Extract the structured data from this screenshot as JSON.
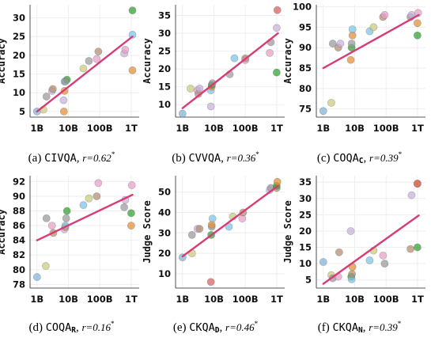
{
  "colors": {
    "trend": "#d63c78",
    "grid": "#eeeeee",
    "axis": "#222222",
    "points": [
      "#2ca02c",
      "#7dc2e6",
      "#e38d33",
      "#c6aeda",
      "#999999",
      "#9b9b9b",
      "#b38c70",
      "#e89ec8",
      "#cbcb7a",
      "#7fb3d5"
    ]
  },
  "chart_data": [
    {
      "type": "scatter",
      "panel": "a",
      "caption": {
        "letter": "(a)",
        "name": "CIVQA",
        "sub": "",
        "r": "r=0.62",
        "star": "*"
      },
      "xlabel": "",
      "ylabel": "Accuracy",
      "xscale": "log",
      "xticks": [
        "1B",
        "10B",
        "100B",
        "1T"
      ],
      "xtick_values": [
        1,
        10,
        100,
        1000
      ],
      "yticks": [
        5,
        10,
        15,
        20,
        25,
        30
      ],
      "xlim": [
        0.6,
        1800
      ],
      "ylim": [
        3.5,
        33.5
      ],
      "points": [
        {
          "x": 1,
          "y": 5,
          "color": "#7fb3d5"
        },
        {
          "x": 1.6,
          "y": 5.5,
          "color": "#cbcb7a"
        },
        {
          "x": 2,
          "y": 9,
          "color": "#999999"
        },
        {
          "x": 3,
          "y": 10.5,
          "color": "#c6aeda"
        },
        {
          "x": 3.2,
          "y": 11,
          "color": "#b38c70"
        },
        {
          "x": 7,
          "y": 8,
          "color": "#c6aeda"
        },
        {
          "x": 7.2,
          "y": 5,
          "color": "#e38d33"
        },
        {
          "x": 7.5,
          "y": 10.5,
          "color": "#e38d33"
        },
        {
          "x": 7.5,
          "y": 13,
          "color": "#7dc2e6"
        },
        {
          "x": 9,
          "y": 13.5,
          "color": "#2ca02c"
        },
        {
          "x": 8,
          "y": 13,
          "color": "#999999"
        },
        {
          "x": 30,
          "y": 16.5,
          "color": "#cbcb7a"
        },
        {
          "x": 45,
          "y": 18.5,
          "color": "#9b9b9b"
        },
        {
          "x": 80,
          "y": 19,
          "color": "#e89ec8"
        },
        {
          "x": 90,
          "y": 21,
          "color": "#b38c70"
        },
        {
          "x": 600,
          "y": 20.5,
          "color": "#c6aeda"
        },
        {
          "x": 650,
          "y": 21.5,
          "color": "#e89ec8"
        },
        {
          "x": 1100,
          "y": 16,
          "color": "#e38d33"
        },
        {
          "x": 1100,
          "y": 25.5,
          "color": "#7dc2e6"
        },
        {
          "x": 1100,
          "y": 32,
          "color": "#2ca02c"
        }
      ],
      "trend": {
        "x": [
          1,
          1100
        ],
        "y": [
          5,
          25
        ]
      }
    },
    {
      "type": "scatter",
      "panel": "b",
      "caption": {
        "letter": "(b)",
        "name": "CVVQA",
        "sub": "",
        "r": "r=0.36",
        "star": "*"
      },
      "xlabel": "",
      "ylabel": "Accuracy",
      "xscale": "log",
      "xticks": [
        "1B",
        "10B",
        "100B",
        "1T"
      ],
      "xtick_values": [
        1,
        10,
        100,
        1000
      ],
      "yticks": [
        10,
        15,
        20,
        25,
        30,
        35
      ],
      "xlim": [
        0.6,
        1800
      ],
      "ylim": [
        6.5,
        38
      ],
      "points": [
        {
          "x": 1,
          "y": 7.5,
          "color": "#7fb3d5"
        },
        {
          "x": 1.8,
          "y": 14.5,
          "color": "#cbcb7a"
        },
        {
          "x": 3,
          "y": 14,
          "color": "#e89ec8"
        },
        {
          "x": 3.2,
          "y": 13,
          "color": "#b38c70"
        },
        {
          "x": 3.5,
          "y": 14.5,
          "color": "#c6aeda"
        },
        {
          "x": 8,
          "y": 9.5,
          "color": "#c6aeda"
        },
        {
          "x": 8,
          "y": 14,
          "color": "#7dc2e6"
        },
        {
          "x": 8.5,
          "y": 15,
          "color": "#e38d33"
        },
        {
          "x": 8.5,
          "y": 15.5,
          "color": "#2ca02c"
        },
        {
          "x": 9,
          "y": 16,
          "color": "#999999"
        },
        {
          "x": 32,
          "y": 18.5,
          "color": "#9b9b9b"
        },
        {
          "x": 45,
          "y": 23,
          "color": "#7dc2e6"
        },
        {
          "x": 100,
          "y": 22.5,
          "color": "#e89ec8"
        },
        {
          "x": 100,
          "y": 23,
          "color": "#b38c70"
        },
        {
          "x": 600,
          "y": 24.5,
          "color": "#e89ec8"
        },
        {
          "x": 650,
          "y": 27.5,
          "color": "#999999"
        },
        {
          "x": 1000,
          "y": 19,
          "color": "#2ca02c"
        },
        {
          "x": 1000,
          "y": 31.5,
          "color": "#c6aeda"
        },
        {
          "x": 1050,
          "y": 36.5,
          "color": "#d65f5f"
        }
      ],
      "trend": {
        "x": [
          1,
          1100
        ],
        "y": [
          9,
          30
        ]
      }
    },
    {
      "type": "scatter",
      "panel": "c",
      "caption": {
        "letter": "(c)",
        "name": "COQA",
        "sub": "C",
        "r": "r=0.39",
        "star": "*"
      },
      "xlabel": "",
      "ylabel": "Accuracy",
      "xscale": "log",
      "xticks": [
        "1B",
        "10B",
        "100B",
        "1T"
      ],
      "xtick_values": [
        1,
        10,
        100,
        1000
      ],
      "yticks": [
        75,
        80,
        85,
        90,
        95,
        100
      ],
      "xlim": [
        0.6,
        1800
      ],
      "ylim": [
        73,
        100.5
      ],
      "points": [
        {
          "x": 1,
          "y": 74.5,
          "color": "#7fb3d5"
        },
        {
          "x": 1.8,
          "y": 76.5,
          "color": "#cbcb7a"
        },
        {
          "x": 2,
          "y": 91,
          "color": "#999999"
        },
        {
          "x": 3,
          "y": 90,
          "color": "#b38c70"
        },
        {
          "x": 3.5,
          "y": 91,
          "color": "#c6aeda"
        },
        {
          "x": 7.5,
          "y": 87,
          "color": "#e38d33"
        },
        {
          "x": 8,
          "y": 90,
          "color": "#2ca02c"
        },
        {
          "x": 8,
          "y": 91,
          "color": "#999999"
        },
        {
          "x": 8.5,
          "y": 93,
          "color": "#e38d33"
        },
        {
          "x": 8.5,
          "y": 94.5,
          "color": "#7dc2e6"
        },
        {
          "x": 30,
          "y": 94,
          "color": "#7dc2e6"
        },
        {
          "x": 40,
          "y": 95,
          "color": "#cbcb7a"
        },
        {
          "x": 80,
          "y": 97.5,
          "color": "#b38c70"
        },
        {
          "x": 90,
          "y": 98,
          "color": "#e89ec8"
        },
        {
          "x": 600,
          "y": 97.5,
          "color": "#999999"
        },
        {
          "x": 650,
          "y": 98,
          "color": "#c6aeda"
        },
        {
          "x": 1000,
          "y": 93,
          "color": "#2ca02c"
        },
        {
          "x": 1000,
          "y": 96,
          "color": "#e38d33"
        },
        {
          "x": 1050,
          "y": 98.5,
          "color": "#e89ec8"
        }
      ],
      "trend": {
        "x": [
          1,
          1100
        ],
        "y": [
          85,
          98
        ]
      }
    },
    {
      "type": "scatter",
      "panel": "d",
      "caption": {
        "letter": "(d)",
        "name": "COQA",
        "sub": "R",
        "r": "r=0.16",
        "star": "*"
      },
      "xlabel": "",
      "ylabel": "Accuracy",
      "xscale": "log",
      "xticks": [
        "1B",
        "10B",
        "100B",
        "1T"
      ],
      "xtick_values": [
        1,
        10,
        100,
        1000
      ],
      "yticks": [
        78,
        80,
        82,
        84,
        86,
        88,
        90,
        92
      ],
      "xlim": [
        0.6,
        1800
      ],
      "ylim": [
        77.5,
        92.8
      ],
      "points": [
        {
          "x": 1,
          "y": 79,
          "color": "#7fb3d5"
        },
        {
          "x": 1.9,
          "y": 80.5,
          "color": "#cbcb7a"
        },
        {
          "x": 2,
          "y": 87,
          "color": "#999999"
        },
        {
          "x": 3,
          "y": 86,
          "color": "#e89ec8"
        },
        {
          "x": 3.3,
          "y": 85,
          "color": "#b38c70"
        },
        {
          "x": 7.5,
          "y": 85.5,
          "color": "#c6aeda"
        },
        {
          "x": 8,
          "y": 85.8,
          "color": "#e38d33"
        },
        {
          "x": 8,
          "y": 86,
          "color": "#7dc2e6"
        },
        {
          "x": 8.5,
          "y": 87,
          "color": "#999999"
        },
        {
          "x": 9,
          "y": 88,
          "color": "#2ca02c"
        },
        {
          "x": 30,
          "y": 88.8,
          "color": "#7dc2e6"
        },
        {
          "x": 45,
          "y": 89.7,
          "color": "#cbcb7a"
        },
        {
          "x": 80,
          "y": 90,
          "color": "#b38c70"
        },
        {
          "x": 90,
          "y": 91.8,
          "color": "#e89ec8"
        },
        {
          "x": 600,
          "y": 88.5,
          "color": "#999999"
        },
        {
          "x": 650,
          "y": 89.5,
          "color": "#c6aeda"
        },
        {
          "x": 1000,
          "y": 86,
          "color": "#e38d33"
        },
        {
          "x": 1000,
          "y": 87.7,
          "color": "#2ca02c"
        },
        {
          "x": 1050,
          "y": 91.5,
          "color": "#e89ec8"
        }
      ],
      "trend": {
        "x": [
          1,
          1100
        ],
        "y": [
          84,
          90.2
        ]
      }
    },
    {
      "type": "scatter",
      "panel": "e",
      "caption": {
        "letter": "(e)",
        "name": "CKQA",
        "sub": "D",
        "r": "r=0.46",
        "star": "*"
      },
      "xlabel": "",
      "ylabel": "Judge Score",
      "xscale": "log",
      "xticks": [
        "1B",
        "10B",
        "100B",
        "1T"
      ],
      "xtick_values": [
        1,
        10,
        100,
        1000
      ],
      "yticks": [
        10,
        20,
        30,
        40,
        50
      ],
      "xlim": [
        0.6,
        1800
      ],
      "ylim": [
        3,
        58
      ],
      "points": [
        {
          "x": 1,
          "y": 18,
          "color": "#7fb3d5"
        },
        {
          "x": 2,
          "y": 20,
          "color": "#cbcb7a"
        },
        {
          "x": 2,
          "y": 29,
          "color": "#999999"
        },
        {
          "x": 3,
          "y": 32,
          "color": "#c6aeda"
        },
        {
          "x": 3.5,
          "y": 32,
          "color": "#b38c70"
        },
        {
          "x": 8,
          "y": 6,
          "color": "#d65f5f"
        },
        {
          "x": 8.2,
          "y": 29,
          "color": "#2ca02c"
        },
        {
          "x": 8.5,
          "y": 33,
          "color": "#999999"
        },
        {
          "x": 8.5,
          "y": 34,
          "color": "#e38d33"
        },
        {
          "x": 9,
          "y": 37,
          "color": "#7dc2e6"
        },
        {
          "x": 30,
          "y": 33,
          "color": "#7dc2e6"
        },
        {
          "x": 40,
          "y": 38,
          "color": "#cbcb7a"
        },
        {
          "x": 80,
          "y": 37,
          "color": "#e89ec8"
        },
        {
          "x": 85,
          "y": 40,
          "color": "#b38c70"
        },
        {
          "x": 600,
          "y": 51,
          "color": "#c6aeda"
        },
        {
          "x": 650,
          "y": 52,
          "color": "#999999"
        },
        {
          "x": 1000,
          "y": 52,
          "color": "#b38c70"
        },
        {
          "x": 1000,
          "y": 53,
          "color": "#2ca02c"
        },
        {
          "x": 1050,
          "y": 55,
          "color": "#e38d33"
        }
      ],
      "trend": {
        "x": [
          1,
          1100
        ],
        "y": [
          18.5,
          53
        ]
      }
    },
    {
      "type": "scatter",
      "panel": "f",
      "caption": {
        "letter": "(f)",
        "name": "CKQA",
        "sub": "N",
        "r": "r=0.39",
        "star": "*"
      },
      "xlabel": "",
      "ylabel": "Judge Score",
      "xscale": "log",
      "xticks": [
        "1B",
        "10B",
        "100B",
        "1T"
      ],
      "xtick_values": [
        1,
        10,
        100,
        1000
      ],
      "yticks": [
        5,
        10,
        15,
        20,
        25,
        30,
        35
      ],
      "xlim": [
        0.6,
        1800
      ],
      "ylim": [
        2.5,
        37
      ],
      "points": [
        {
          "x": 1,
          "y": 10.5,
          "color": "#7fb3d5"
        },
        {
          "x": 1.8,
          "y": 6.5,
          "color": "#cbcb7a"
        },
        {
          "x": 2,
          "y": 5.5,
          "color": "#999999"
        },
        {
          "x": 3,
          "y": 6,
          "color": "#e89ec8"
        },
        {
          "x": 3.2,
          "y": 13.5,
          "color": "#b38c70"
        },
        {
          "x": 7.5,
          "y": 20,
          "color": "#c6aeda"
        },
        {
          "x": 7.8,
          "y": 6,
          "color": "#2ca02c"
        },
        {
          "x": 8,
          "y": 5.2,
          "color": "#7dc2e6"
        },
        {
          "x": 8.2,
          "y": 6.8,
          "color": "#b38c70"
        },
        {
          "x": 8.5,
          "y": 9,
          "color": "#e38d33"
        },
        {
          "x": 30,
          "y": 11,
          "color": "#7dc2e6"
        },
        {
          "x": 40,
          "y": 14,
          "color": "#cbcb7a"
        },
        {
          "x": 80,
          "y": 12.5,
          "color": "#e89ec8"
        },
        {
          "x": 90,
          "y": 10,
          "color": "#999999"
        },
        {
          "x": 600,
          "y": 14.5,
          "color": "#b38c70"
        },
        {
          "x": 650,
          "y": 31,
          "color": "#c6aeda"
        },
        {
          "x": 1000,
          "y": 15,
          "color": "#2ca02c"
        },
        {
          "x": 1000,
          "y": 34.5,
          "color": "#e38d33"
        },
        {
          "x": 1000,
          "y": 34.6,
          "color": "#d65f5f"
        }
      ],
      "trend": {
        "x": [
          1,
          1100
        ],
        "y": [
          3.8,
          24.8
        ]
      }
    }
  ]
}
